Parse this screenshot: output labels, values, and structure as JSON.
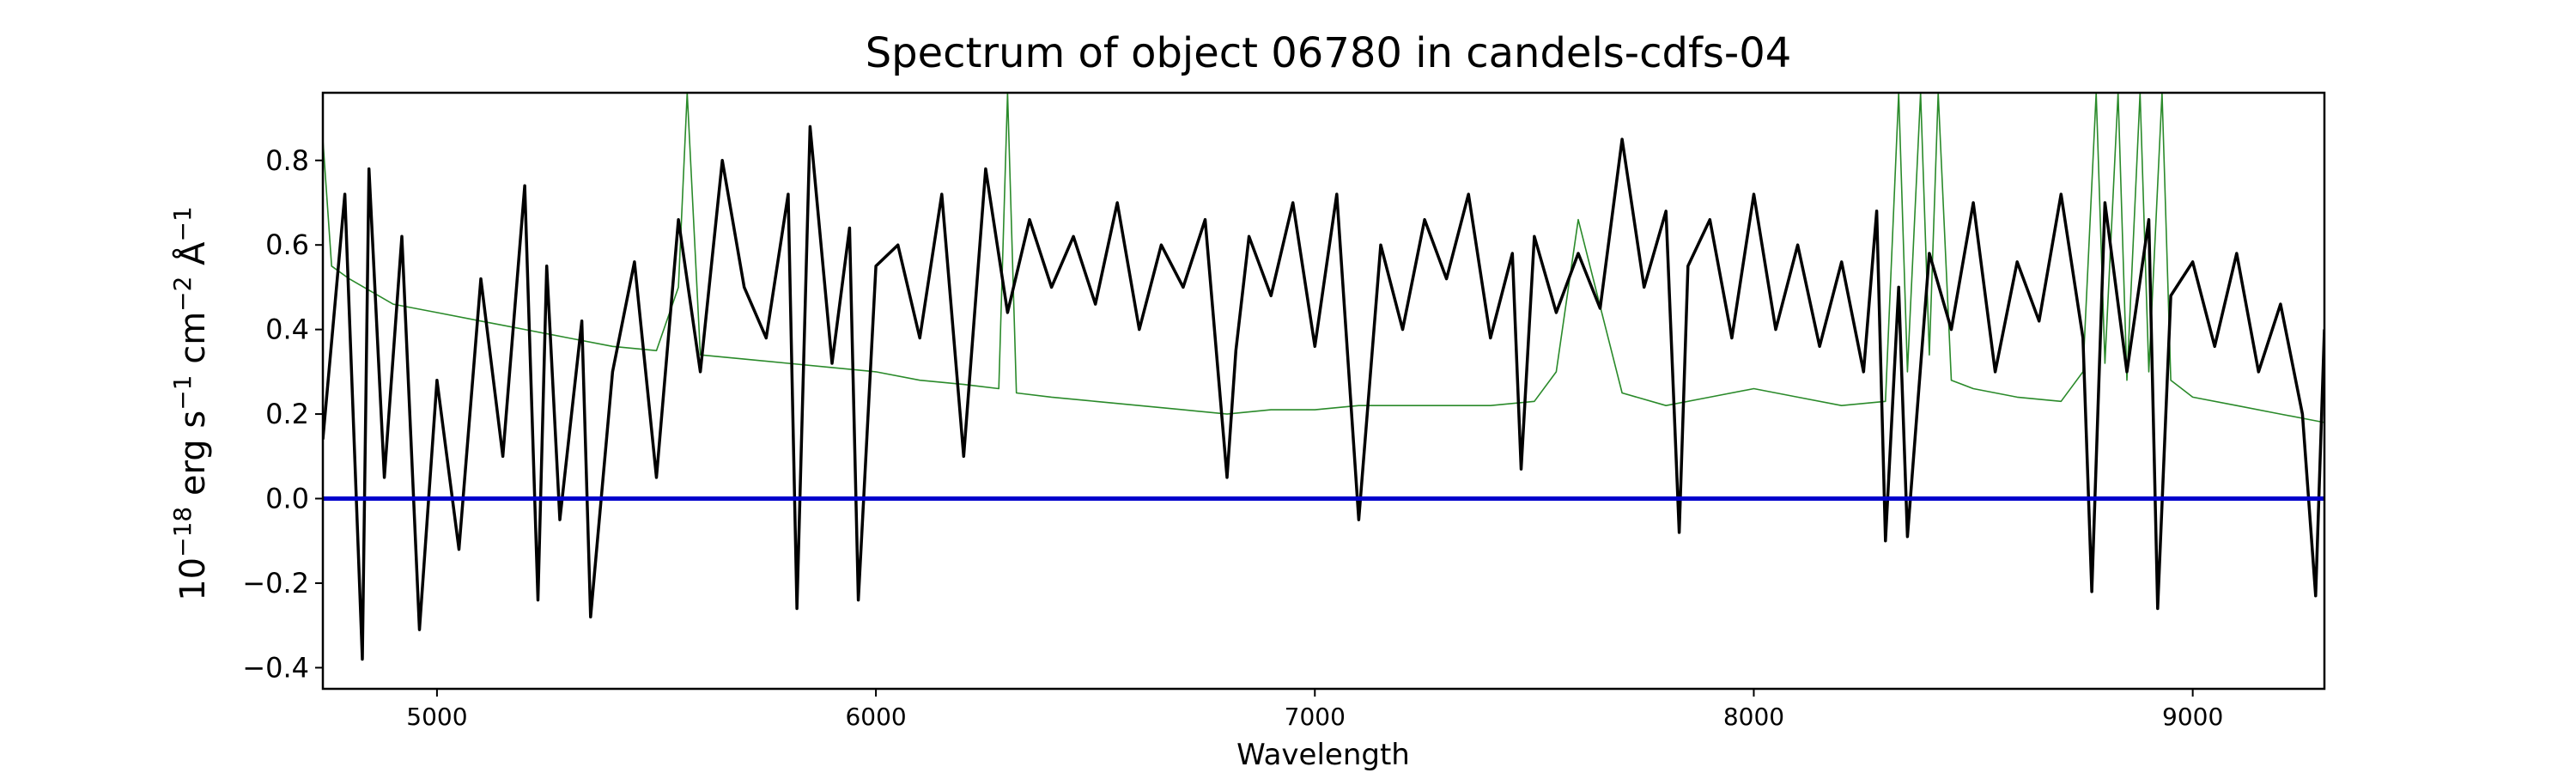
{
  "chart_data": {
    "type": "line",
    "title": "Spectrum of object 06780 in candels-cdfs-04",
    "xlabel": "Wavelength",
    "ylabel_base": "10",
    "ylabel_exp": "−18",
    "ylabel_rest": [
      {
        "t": " erg s",
        "sup": false
      },
      {
        "t": "−1",
        "sup": true
      },
      {
        "t": " cm",
        "sup": false
      },
      {
        "t": "−2",
        "sup": true
      },
      {
        "t": " Å",
        "sup": false
      },
      {
        "t": "−1",
        "sup": true
      }
    ],
    "xlim": [
      4740,
      9300
    ],
    "ylim": [
      -0.45,
      0.96
    ],
    "xticks": [
      5000,
      6000,
      7000,
      8000,
      9000
    ],
    "xtick_labels": [
      "5000",
      "6000",
      "7000",
      "8000",
      "9000"
    ],
    "yticks": [
      -0.4,
      -0.2,
      0.0,
      0.2,
      0.4,
      0.6,
      0.8
    ],
    "ytick_labels": [
      "−0.4",
      "−0.2",
      "0.0",
      "0.2",
      "0.4",
      "0.6",
      "0.8"
    ],
    "grid": false,
    "legend": "none",
    "colors": {
      "flux": "#000000",
      "error": "#2a8a2a",
      "zero": "#0000cc"
    },
    "series": [
      {
        "role": "flux",
        "x": [
          4740,
          4790,
          4830,
          4845,
          4880,
          4920,
          4960,
          5000,
          5050,
          5100,
          5150,
          5200,
          5230,
          5250,
          5280,
          5330,
          5350,
          5400,
          5450,
          5500,
          5550,
          5600,
          5650,
          5700,
          5750,
          5800,
          5820,
          5850,
          5900,
          5940,
          5960,
          6000,
          6050,
          6100,
          6150,
          6200,
          6250,
          6300,
          6350,
          6400,
          6450,
          6500,
          6550,
          6600,
          6650,
          6700,
          6750,
          6800,
          6820,
          6850,
          6900,
          6950,
          7000,
          7050,
          7100,
          7150,
          7200,
          7250,
          7300,
          7350,
          7400,
          7450,
          7470,
          7500,
          7550,
          7600,
          7650,
          7700,
          7750,
          7800,
          7830,
          7850,
          7900,
          7950,
          8000,
          8050,
          8100,
          8150,
          8200,
          8250,
          8280,
          8300,
          8330,
          8350,
          8400,
          8450,
          8500,
          8550,
          8600,
          8650,
          8700,
          8750,
          8770,
          8800,
          8850,
          8900,
          8920,
          8950,
          9000,
          9050,
          9100,
          9150,
          9200,
          9250,
          9280,
          9300
        ],
        "y": [
          0.14,
          0.72,
          -0.38,
          0.78,
          0.05,
          0.62,
          -0.31,
          0.28,
          -0.12,
          0.52,
          0.1,
          0.74,
          -0.24,
          0.55,
          -0.05,
          0.42,
          -0.28,
          0.3,
          0.56,
          0.05,
          0.66,
          0.3,
          0.8,
          0.5,
          0.38,
          0.72,
          -0.26,
          0.88,
          0.32,
          0.64,
          -0.24,
          0.55,
          0.6,
          0.38,
          0.72,
          0.1,
          0.78,
          0.44,
          0.66,
          0.5,
          0.62,
          0.46,
          0.7,
          0.4,
          0.6,
          0.5,
          0.66,
          0.05,
          0.35,
          0.62,
          0.48,
          0.7,
          0.36,
          0.72,
          -0.05,
          0.6,
          0.4,
          0.66,
          0.52,
          0.72,
          0.38,
          0.58,
          0.07,
          0.62,
          0.44,
          0.58,
          0.45,
          0.85,
          0.5,
          0.68,
          -0.08,
          0.55,
          0.66,
          0.38,
          0.72,
          0.4,
          0.6,
          0.36,
          0.56,
          0.3,
          0.68,
          -0.1,
          0.5,
          -0.09,
          0.58,
          0.4,
          0.7,
          0.3,
          0.56,
          0.42,
          0.72,
          0.38,
          -0.22,
          0.7,
          0.3,
          0.66,
          -0.26,
          0.48,
          0.56,
          0.36,
          0.58,
          0.3,
          0.46,
          0.2,
          -0.23,
          0.4
        ]
      },
      {
        "role": "error",
        "x": [
          4740,
          4760,
          4800,
          4900,
          5000,
          5100,
          5200,
          5300,
          5400,
          5500,
          5550,
          5570,
          5600,
          5700,
          5800,
          5900,
          6000,
          6100,
          6200,
          6280,
          6300,
          6320,
          6400,
          6500,
          6600,
          6700,
          6800,
          6900,
          7000,
          7100,
          7200,
          7300,
          7400,
          7500,
          7550,
          7600,
          7700,
          7800,
          7900,
          8000,
          8100,
          8200,
          8300,
          8330,
          8350,
          8380,
          8400,
          8420,
          8450,
          8500,
          8600,
          8700,
          8750,
          8780,
          8800,
          8830,
          8850,
          8880,
          8900,
          8930,
          8950,
          9000,
          9100,
          9200,
          9300
        ],
        "y": [
          0.85,
          0.55,
          0.52,
          0.46,
          0.44,
          0.42,
          0.4,
          0.38,
          0.36,
          0.35,
          0.5,
          0.96,
          0.34,
          0.33,
          0.32,
          0.31,
          0.3,
          0.28,
          0.27,
          0.26,
          0.96,
          0.25,
          0.24,
          0.23,
          0.22,
          0.21,
          0.2,
          0.21,
          0.21,
          0.22,
          0.22,
          0.22,
          0.22,
          0.23,
          0.3,
          0.66,
          0.25,
          0.22,
          0.24,
          0.26,
          0.24,
          0.22,
          0.23,
          0.96,
          0.3,
          0.96,
          0.34,
          0.96,
          0.28,
          0.26,
          0.24,
          0.23,
          0.3,
          0.96,
          0.32,
          0.96,
          0.28,
          0.96,
          0.3,
          0.96,
          0.28,
          0.24,
          0.22,
          0.2,
          0.18
        ]
      },
      {
        "role": "zero",
        "x": [
          4740,
          9300
        ],
        "y": [
          0,
          0
        ]
      }
    ]
  }
}
